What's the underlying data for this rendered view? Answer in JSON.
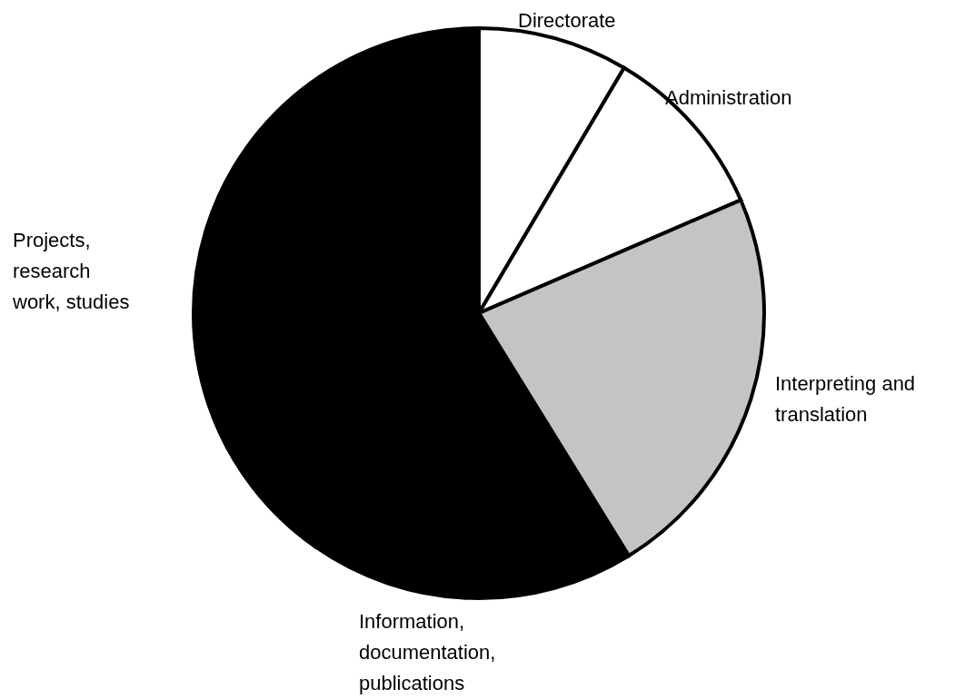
{
  "chart_data": {
    "type": "pie",
    "categories": [
      "Directorate",
      "Administration",
      "Interpreting and translation",
      "Information, documentation, publications",
      "Projects, research work, studies"
    ],
    "values": [
      8.5,
      10,
      22.7,
      18.5,
      40.3
    ],
    "colors": [
      "#ffffff",
      "#ffffff",
      "#c4c4c4",
      "#000000",
      "#000000"
    ]
  }
}
